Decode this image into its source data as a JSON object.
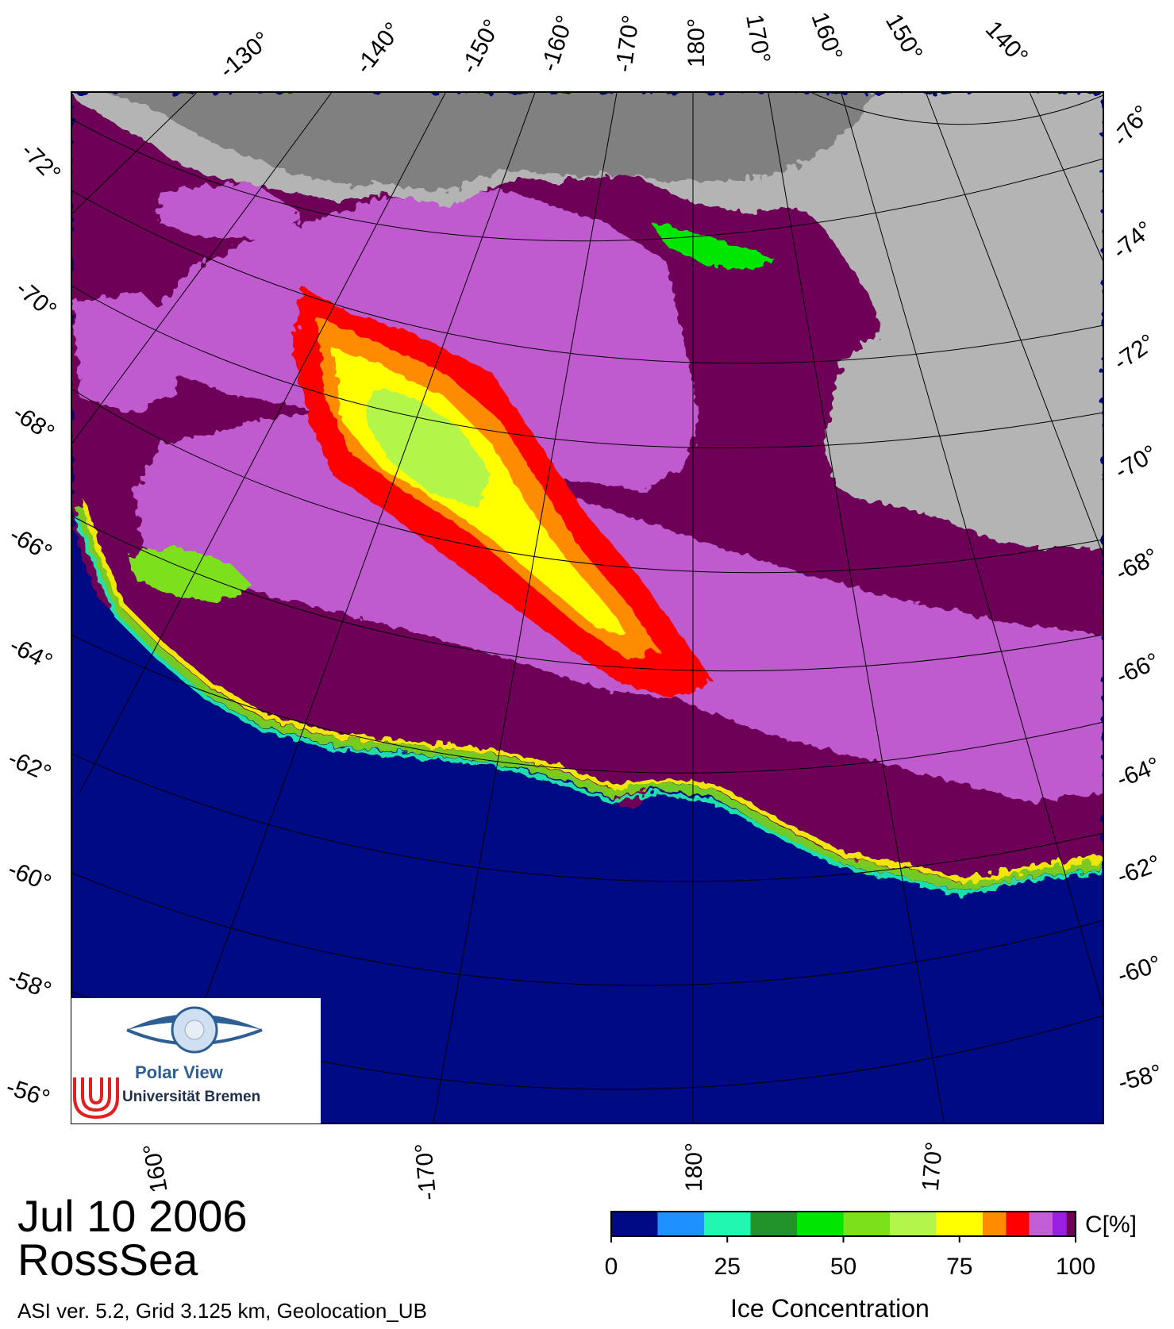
{
  "map": {
    "date": "Jul 10 2006",
    "region": "RossSea",
    "version_line": "ASI ver. 5.2,  Grid 3.125 km, Geolocation_UB",
    "top_longitude_labels": [
      "-130°",
      "-140°",
      "-150°",
      "-160°",
      "-170°",
      "180°",
      "170°",
      "160°",
      "150°",
      "140°"
    ],
    "bottom_longitude_labels": [
      "160°",
      "-170°",
      "180°",
      "170°"
    ],
    "left_latitude_labels": [
      "-72°",
      "-70°",
      "-68°",
      "-66°",
      "-64°",
      "-62°",
      "-60°",
      "-58°",
      "-56°"
    ],
    "right_latitude_labels": [
      "-76°",
      "-74°",
      "-72°",
      "-70°",
      "-68°",
      "-66°",
      "-64°",
      "-62°",
      "-60°",
      "-58°"
    ]
  },
  "colorbar": {
    "title": "Ice Concentration",
    "unit": "C[%]",
    "ticks": [
      "0",
      "25",
      "50",
      "75",
      "100"
    ],
    "bins": [
      {
        "from": 0,
        "to": 10,
        "color": "#000a85"
      },
      {
        "from": 10,
        "to": 20,
        "color": "#1e90ff"
      },
      {
        "from": 20,
        "to": 30,
        "color": "#21f7b0"
      },
      {
        "from": 30,
        "to": 40,
        "color": "#22922a"
      },
      {
        "from": 40,
        "to": 50,
        "color": "#00e600"
      },
      {
        "from": 50,
        "to": 60,
        "color": "#7ce01a"
      },
      {
        "from": 60,
        "to": 70,
        "color": "#b3f54a"
      },
      {
        "from": 70,
        "to": 80,
        "color": "#ffff00"
      },
      {
        "from": 80,
        "to": 85,
        "color": "#ff8c00"
      },
      {
        "from": 85,
        "to": 90,
        "color": "#ff0000"
      },
      {
        "from": 90,
        "to": 95,
        "color": "#c45ed6"
      },
      {
        "from": 95,
        "to": 98,
        "color": "#9a1fe0"
      },
      {
        "from": 98,
        "to": 100,
        "color": "#6e0058"
      }
    ]
  },
  "colors": {
    "ocean": "#000a85",
    "land": "#b4b4b4",
    "ice_shelf": "#808080",
    "full_ice": "#6e0058"
  },
  "logo": {
    "line1": "Polar View",
    "line2": "Universität Bremen"
  }
}
